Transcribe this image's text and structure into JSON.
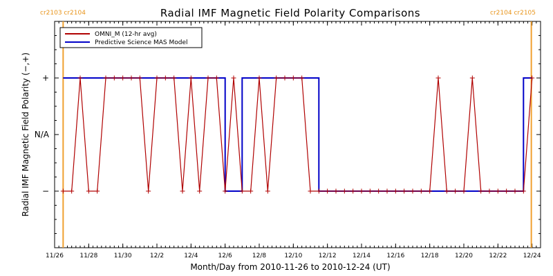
{
  "chart_data": {
    "type": "line",
    "title": "Radial IMF Magnetic Field Polarity Comparisons",
    "xlabel": "Month/Day from 2010-11-26 to 2010-12-24 (UT)",
    "ylabel": "Radial IMF Magnetic Field Polarity (−,+)",
    "x_start": "2010-11-26",
    "x_end": "2010-12-24",
    "xlim": [
      "2010-11-26",
      "2010-12-24T12:00"
    ],
    "x_tick_labels": [
      "11/26",
      "11/28",
      "11/30",
      "12/2",
      "12/4",
      "12/6",
      "12/8",
      "12/10",
      "12/12",
      "12/14",
      "12/16",
      "12/18",
      "12/20",
      "12/22",
      "12/24"
    ],
    "y_categories": [
      "−",
      "N/A",
      "+"
    ],
    "ylim": [
      -2,
      2
    ],
    "cr_labels": {
      "left": "cr2103 cr2104",
      "right": "cr2104 cr2105"
    },
    "cr_boundaries": [
      "2010-11-26T12:00",
      "2010-12-23T23:00"
    ],
    "legend": {
      "position": "top-left"
    },
    "series": [
      {
        "name": "OMNI_M (12-hr avg)",
        "color": "#b00000",
        "x": [
          "2010-11-26T12:00",
          "2010-11-27T00:00",
          "2010-11-27T12:00",
          "2010-11-28T00:00",
          "2010-11-28T12:00",
          "2010-11-29T00:00",
          "2010-11-29T12:00",
          "2010-11-30T00:00",
          "2010-11-30T12:00",
          "2010-12-01T00:00",
          "2010-12-01T12:00",
          "2010-12-02T00:00",
          "2010-12-02T12:00",
          "2010-12-03T00:00",
          "2010-12-03T12:00",
          "2010-12-04T00:00",
          "2010-12-04T12:00",
          "2010-12-05T00:00",
          "2010-12-05T12:00",
          "2010-12-06T00:00",
          "2010-12-06T12:00",
          "2010-12-07T00:00",
          "2010-12-07T12:00",
          "2010-12-08T00:00",
          "2010-12-08T12:00",
          "2010-12-09T00:00",
          "2010-12-09T12:00",
          "2010-12-10T00:00",
          "2010-12-10T12:00",
          "2010-12-11T00:00",
          "2010-12-11T12:00",
          "2010-12-12T00:00",
          "2010-12-12T12:00",
          "2010-12-13T00:00",
          "2010-12-13T12:00",
          "2010-12-14T00:00",
          "2010-12-14T12:00",
          "2010-12-15T00:00",
          "2010-12-15T12:00",
          "2010-12-16T00:00",
          "2010-12-16T12:00",
          "2010-12-17T00:00",
          "2010-12-17T12:00",
          "2010-12-18T00:00",
          "2010-12-18T12:00",
          "2010-12-19T00:00",
          "2010-12-19T12:00",
          "2010-12-20T00:00",
          "2010-12-20T12:00",
          "2010-12-21T00:00",
          "2010-12-21T12:00",
          "2010-12-22T00:00",
          "2010-12-22T12:00",
          "2010-12-23T00:00",
          "2010-12-23T12:00",
          "2010-12-24T00:00"
        ],
        "values": [
          -1,
          -1,
          1,
          -1,
          -1,
          1,
          1,
          1,
          1,
          1,
          -1,
          1,
          1,
          1,
          -1,
          1,
          -1,
          1,
          1,
          -1,
          1,
          -1,
          -1,
          1,
          -1,
          1,
          1,
          1,
          1,
          -1,
          -1,
          -1,
          -1,
          -1,
          -1,
          -1,
          -1,
          -1,
          -1,
          -1,
          -1,
          -1,
          -1,
          -1,
          1,
          -1,
          -1,
          -1,
          1,
          -1,
          -1,
          -1,
          -1,
          -1,
          -1,
          1
        ]
      },
      {
        "name": "Predictive Science MAS Model",
        "color": "#0000c8",
        "x": [
          "2010-11-26T12:00",
          "2010-12-06T00:00",
          "2010-12-06T00:00",
          "2010-12-07T00:00",
          "2010-12-07T00:00",
          "2010-12-11T12:00",
          "2010-12-11T12:00",
          "2010-12-23T12:00",
          "2010-12-23T12:00",
          "2010-12-24T00:00"
        ],
        "values": [
          1,
          1,
          -1,
          -1,
          1,
          1,
          -1,
          -1,
          1,
          1
        ]
      }
    ]
  }
}
